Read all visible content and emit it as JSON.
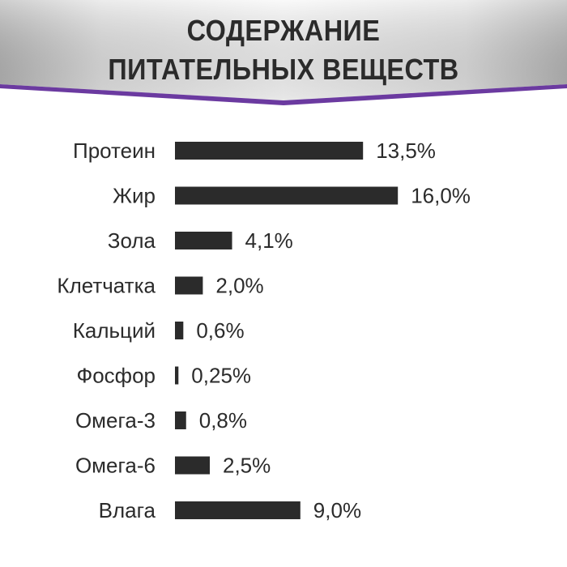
{
  "header": {
    "title_line_1": "СОДЕРЖАНИЕ",
    "title_line_2": "ПИТАТЕЛЬНЫХ ВЕЩЕСТВ"
  },
  "colors": {
    "bar": "#2b2b2b",
    "text": "#2b2b2b",
    "banner_light": "#f4f4f4",
    "banner_dark": "#b9b9b9",
    "accent_purple": "#6b3aa0"
  },
  "chart_data": {
    "type": "bar",
    "orientation": "horizontal",
    "categories": [
      "Протеин",
      "Жир",
      "Зола",
      "Клетчатка",
      "Кальций",
      "Фосфор",
      "Омега-3",
      "Омега-6",
      "Влага"
    ],
    "values": [
      13.5,
      16.0,
      4.1,
      2.0,
      0.6,
      0.25,
      0.8,
      2.5,
      9.0
    ],
    "value_labels": [
      "13,5%",
      "16,0%",
      "4,1%",
      "2,0%",
      "0,6%",
      "0,25%",
      "0,8%",
      "2,5%",
      "9,0%"
    ],
    "title": "СОДЕРЖАНИЕ ПИТАТЕЛЬНЫХ ВЕЩЕСТВ",
    "xlabel": "",
    "ylabel": "",
    "grid": false,
    "legend": "none"
  }
}
